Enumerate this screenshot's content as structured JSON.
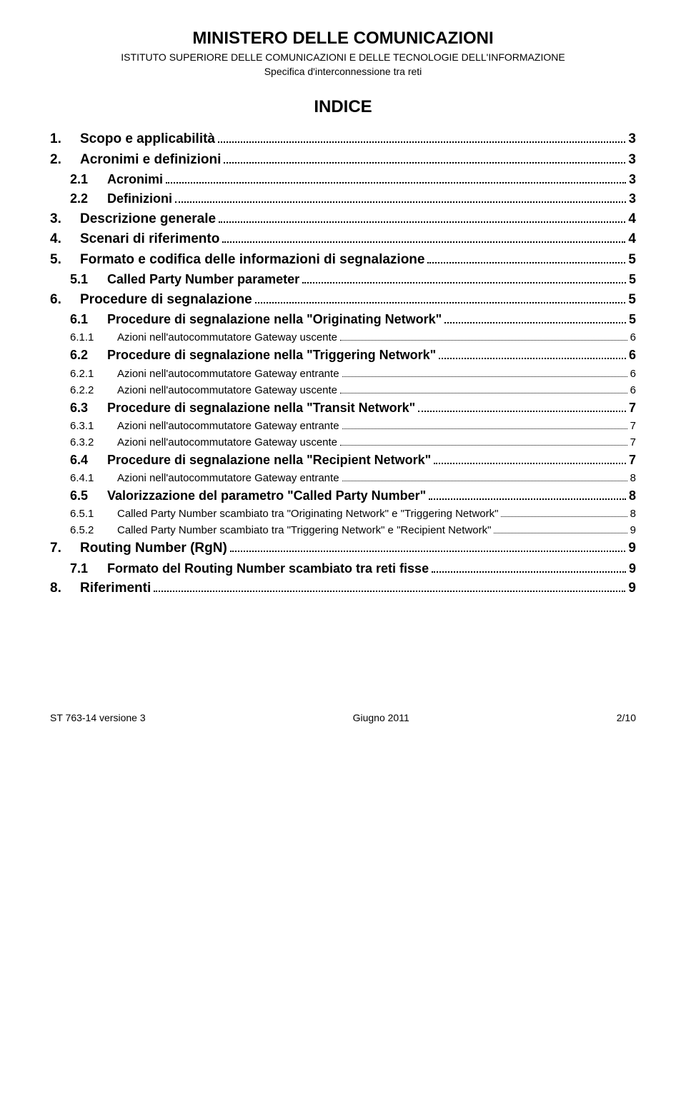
{
  "header": {
    "title": "MINISTERO DELLE COMUNICAZIONI",
    "subtitle": "ISTITUTO SUPERIORE DELLE COMUNICAZIONI E DELLE TECNOLOGIE DELL'INFORMAZIONE",
    "spec": "Specifica d'interconnessione tra reti"
  },
  "indice_title": "INDICE",
  "toc": [
    {
      "level": 1,
      "num": "1.",
      "label": "Scopo e applicabilità",
      "page": "3"
    },
    {
      "level": 1,
      "num": "2.",
      "label": "Acronimi e definizioni",
      "page": "3"
    },
    {
      "level": 2,
      "num": "2.1",
      "label": "Acronimi",
      "page": "3"
    },
    {
      "level": 2,
      "num": "2.2",
      "label": "Definizioni",
      "page": "3"
    },
    {
      "level": 1,
      "num": "3.",
      "label": "Descrizione generale",
      "page": "4"
    },
    {
      "level": 1,
      "num": "4.",
      "label": "Scenari di riferimento",
      "page": "4"
    },
    {
      "level": 1,
      "num": "5.",
      "label": "Formato e codifica delle informazioni di segnalazione",
      "page": "5"
    },
    {
      "level": 2,
      "num": "5.1",
      "label": "Called Party Number parameter",
      "page": "5"
    },
    {
      "level": 1,
      "num": "6.",
      "label": "Procedure di segnalazione",
      "page": "5"
    },
    {
      "level": 2,
      "num": "6.1",
      "label": "Procedure di segnalazione nella \"Originating Network\"",
      "page": "5"
    },
    {
      "level": 3,
      "num": "6.1.1",
      "label": "Azioni nell'autocommutatore Gateway uscente",
      "page": "6"
    },
    {
      "level": 2,
      "num": "6.2",
      "label": "Procedure di segnalazione nella \"Triggering Network\"",
      "page": "6"
    },
    {
      "level": 3,
      "num": "6.2.1",
      "label": "Azioni nell'autocommutatore Gateway entrante",
      "page": "6"
    },
    {
      "level": 3,
      "num": "6.2.2",
      "label": "Azioni nell'autocommutatore Gateway uscente",
      "page": "6"
    },
    {
      "level": 2,
      "num": "6.3",
      "label": "Procedure di segnalazione nella \"Transit Network\"",
      "page": "7"
    },
    {
      "level": 3,
      "num": "6.3.1",
      "label": "Azioni nell'autocommutatore Gateway entrante",
      "page": "7"
    },
    {
      "level": 3,
      "num": "6.3.2",
      "label": "Azioni nell'autocommutatore Gateway uscente",
      "page": "7"
    },
    {
      "level": 2,
      "num": "6.4",
      "label": "Procedure di segnalazione nella \"Recipient Network\"",
      "page": "7"
    },
    {
      "level": 3,
      "num": "6.4.1",
      "label": "Azioni nell'autocommutatore Gateway entrante",
      "page": "8"
    },
    {
      "level": 2,
      "num": "6.5",
      "label": "Valorizzazione del parametro \"Called Party Number\"",
      "page": "8"
    },
    {
      "level": 3,
      "num": "6.5.1",
      "label": "Called Party Number scambiato tra \"Originating Network\" e \"Triggering Network\"",
      "page": "8"
    },
    {
      "level": 3,
      "num": "6.5.2",
      "label": "Called Party Number scambiato tra \"Triggering Network\" e \"Recipient Network\"",
      "page": "9"
    },
    {
      "level": 1,
      "num": "7.",
      "label": "Routing Number (RgN)",
      "page": "9"
    },
    {
      "level": 2,
      "num": "7.1",
      "label": "Formato del Routing Number scambiato tra reti fisse",
      "page": "9"
    },
    {
      "level": 1,
      "num": "8.",
      "label": "Riferimenti",
      "page": "9"
    }
  ],
  "footer": {
    "left": "ST 763-14 versione 3",
    "center": "Giugno 2011",
    "right": "2/10"
  }
}
